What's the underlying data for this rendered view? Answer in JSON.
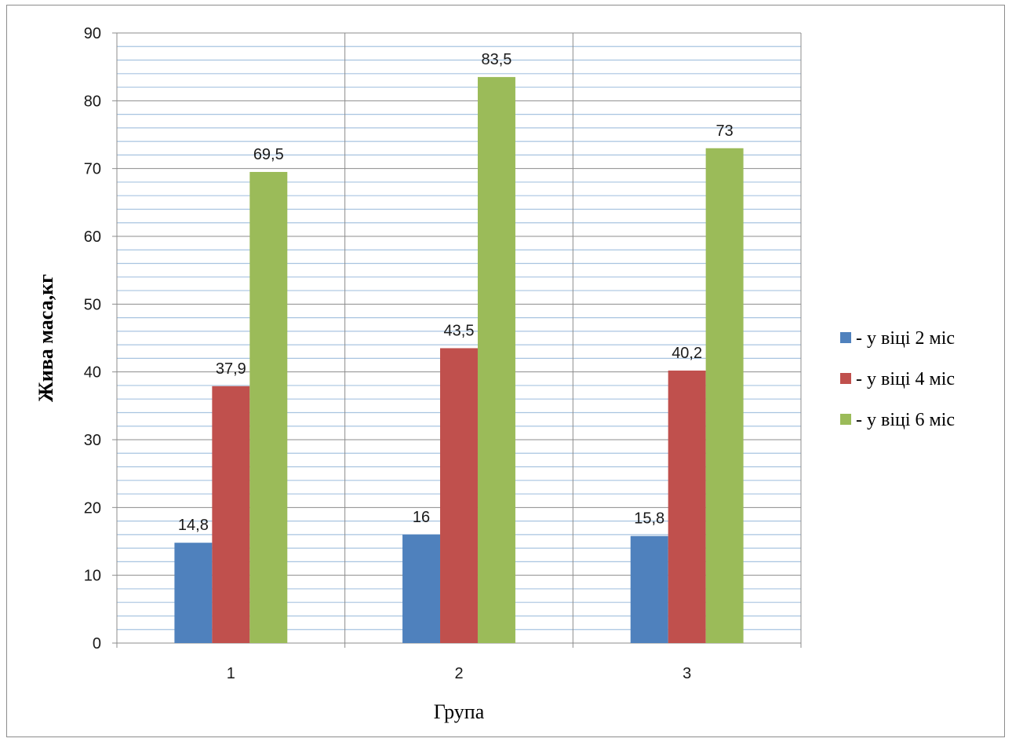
{
  "chart_data": {
    "type": "bar",
    "categories": [
      "1",
      "2",
      "3"
    ],
    "series": [
      {
        "name": "- у віці 2 міс",
        "values": [
          14.8,
          16,
          15.8
        ],
        "labels": [
          "14,8",
          "16",
          "15,8"
        ],
        "color": "#4f81bd"
      },
      {
        "name": "- у віці 4 міс",
        "values": [
          37.9,
          43.5,
          40.2
        ],
        "labels": [
          "37,9",
          "43,5",
          "40,2"
        ],
        "color": "#c0504d"
      },
      {
        "name": "- у віці 6 міс",
        "values": [
          69.5,
          83.5,
          73
        ],
        "labels": [
          "69,5",
          "83,5",
          "73"
        ],
        "color": "#9bbb59"
      }
    ],
    "xlabel": "Група",
    "ylabel": "Жива маса,кг",
    "ylim": [
      0,
      90
    ],
    "yticks": [
      0,
      10,
      20,
      30,
      40,
      50,
      60,
      70,
      80,
      90
    ],
    "grid": true,
    "legend_position": "right"
  },
  "colors": {
    "major_grid": "#8c8c8c",
    "minor_grid": "#a8c4e0"
  }
}
